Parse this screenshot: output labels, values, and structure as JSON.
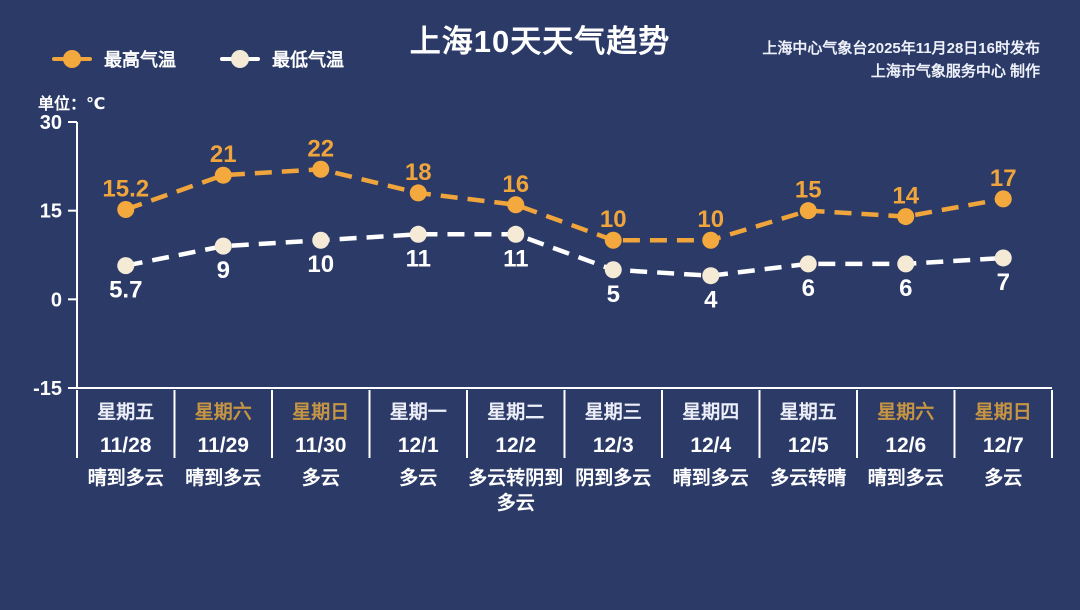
{
  "colors": {
    "background": "#2b3a67",
    "axis": "#ffffff",
    "high_series": "#efa53c",
    "high_marker": "#f3a93d",
    "low_series": "#ffffff",
    "low_marker": "#f5ead6",
    "weekend_label": "#c69544"
  },
  "header": {
    "title": "上海10天天气趋势",
    "publisher_line1": "上海中心气象台2025年11月28日16时发布",
    "publisher_line2": "上海市气象服务中心 制作"
  },
  "legend": {
    "high": {
      "label": "最高气温"
    },
    "low": {
      "label": "最低气温"
    }
  },
  "unit_label": "单位：℃",
  "chart_data": {
    "type": "line",
    "title": "上海10天天气趋势",
    "categories": [
      "11/28",
      "11/29",
      "11/30",
      "12/1",
      "12/2",
      "12/3",
      "12/4",
      "12/5",
      "12/6",
      "12/7"
    ],
    "series": [
      {
        "name": "最高气温",
        "values": [
          15.2,
          21,
          22,
          18,
          16,
          10,
          10,
          15,
          14,
          17
        ],
        "color": "#efa53c",
        "marker_color": "#f3a93d",
        "label_color": "#efa53c",
        "label_position": "above",
        "line_style": "dashed"
      },
      {
        "name": "最低气温",
        "values": [
          5.7,
          9,
          10,
          11,
          11,
          5,
          4,
          6,
          6,
          7
        ],
        "color": "#ffffff",
        "marker_color": "#f5ead6",
        "label_color": "#ffffff",
        "label_position": "below",
        "line_style": "dashed"
      }
    ],
    "ylim": [
      -15,
      30
    ],
    "yticks": [
      30,
      15,
      0,
      -15
    ],
    "ylabel": "单位：℃",
    "xlabel": "",
    "grid": false,
    "legend_position": "top-left"
  },
  "days": [
    {
      "weekday": "星期五",
      "date": "11/28",
      "weather": "晴到多云",
      "is_weekend": false
    },
    {
      "weekday": "星期六",
      "date": "11/29",
      "weather": "晴到多云",
      "is_weekend": true
    },
    {
      "weekday": "星期日",
      "date": "11/30",
      "weather": "多云",
      "is_weekend": true
    },
    {
      "weekday": "星期一",
      "date": "12/1",
      "weather": "多云",
      "is_weekend": false
    },
    {
      "weekday": "星期二",
      "date": "12/2",
      "weather": "多云转阴到多云",
      "is_weekend": false
    },
    {
      "weekday": "星期三",
      "date": "12/3",
      "weather": "阴到多云",
      "is_weekend": false
    },
    {
      "weekday": "星期四",
      "date": "12/4",
      "weather": "晴到多云",
      "is_weekend": false
    },
    {
      "weekday": "星期五",
      "date": "12/5",
      "weather": "多云转晴",
      "is_weekend": false
    },
    {
      "weekday": "星期六",
      "date": "12/6",
      "weather": "晴到多云",
      "is_weekend": true
    },
    {
      "weekday": "星期日",
      "date": "12/7",
      "weather": "多云",
      "is_weekend": true
    }
  ]
}
